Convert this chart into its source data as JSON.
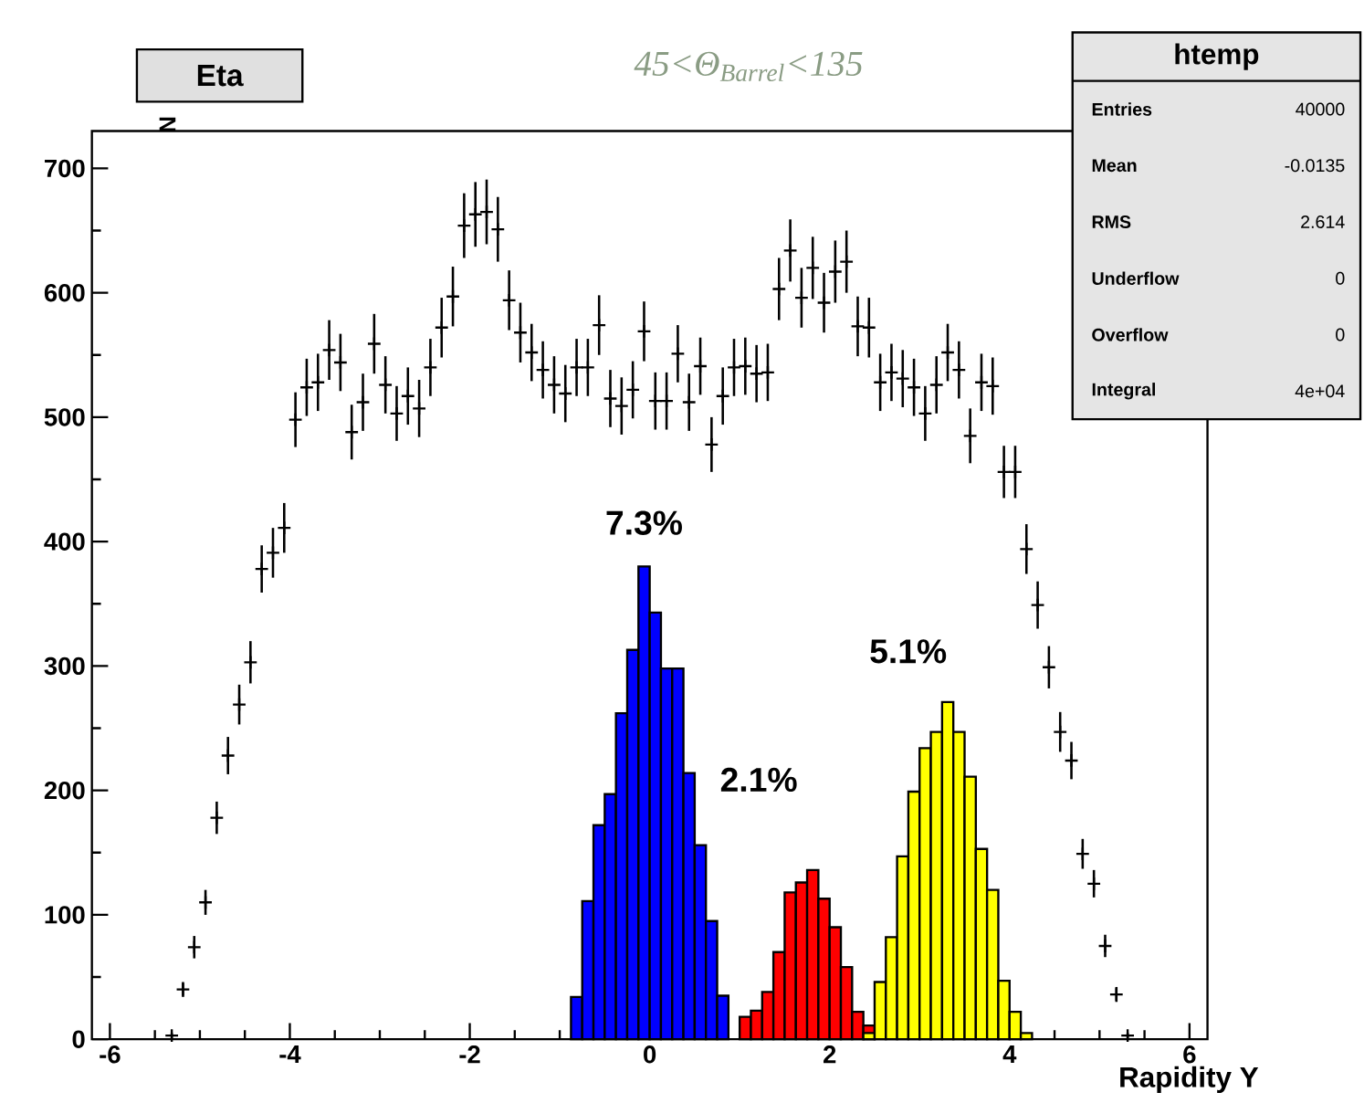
{
  "chart_data": {
    "type": "scatter",
    "title": "Eta",
    "subtitle": "45<Θ$_{Barrel}$<135",
    "xlabel": "Rapidity Y",
    "ylabel": "N",
    "xlim": [
      -6.2,
      6.2
    ],
    "ylim": [
      0,
      730
    ],
    "xticks": [
      -6,
      -4,
      -2,
      0,
      2,
      4,
      6
    ],
    "yticks": [
      0,
      100,
      200,
      300,
      400,
      500,
      600,
      700
    ],
    "marker": "cross",
    "series": [
      {
        "type": "histogram",
        "color": "#0000ff",
        "bins": [
          -0.875,
          -0.75,
          -0.625,
          -0.5,
          -0.375,
          -0.25,
          -0.125,
          0,
          0.125,
          0.25,
          0.375,
          0.5,
          0.625,
          0.75,
          0.875
        ],
        "values": [
          34,
          111,
          172,
          197,
          262,
          313,
          380,
          343,
          298,
          298,
          214,
          156,
          95,
          35
        ]
      },
      {
        "type": "histogram",
        "color": "#ff0000",
        "bins": [
          1,
          1.125,
          1.25,
          1.375,
          1.5,
          1.625,
          1.75,
          1.875,
          2,
          2.125,
          2.25,
          2.375,
          2.5
        ],
        "values": [
          18,
          23,
          38,
          70,
          118,
          126,
          136,
          113,
          90,
          58,
          22,
          11
        ]
      },
      {
        "type": "histogram",
        "color": "#ffff00",
        "bins": [
          2.375,
          2.5,
          2.625,
          2.75,
          2.875,
          3,
          3.125,
          3.25,
          3.375,
          3.5,
          3.625,
          3.75,
          3.875,
          4,
          4.125,
          4.25
        ],
        "values": [
          5,
          46,
          82,
          147,
          199,
          234,
          247,
          271,
          247,
          211,
          153,
          120,
          47,
          22,
          5
        ]
      },
      {
        "color": "#000000",
        "x": [
          -5.3125,
          -5.1875,
          -5.0625,
          -4.9375,
          -4.8125,
          -4.6875,
          -4.5625,
          -4.4375,
          -4.3125,
          -4.1875,
          -4.0625,
          -3.9375,
          -3.8125,
          -3.6875,
          -3.5625,
          -3.4375,
          -3.3125,
          -3.1875,
          -3.0625,
          -2.9375,
          -2.8125,
          -2.6875,
          -2.5625,
          -2.4375,
          -2.3125,
          -2.1875,
          -2.0625,
          -1.9375,
          -1.8125,
          -1.6875,
          -1.5625,
          -1.4375,
          -1.3125,
          -1.1875,
          -1.0625,
          -0.9375,
          -0.8125,
          -0.6875,
          -0.5625,
          -0.4375,
          -0.3125,
          -0.1875,
          -0.0625,
          0.0625,
          0.1875,
          0.3125,
          0.4375,
          0.5625,
          0.6875,
          0.8125,
          0.9375,
          1.0625,
          1.1875,
          1.3125,
          1.4375,
          1.5625,
          1.6875,
          1.8125,
          1.9375,
          2.0625,
          2.1875,
          2.3125,
          2.4375,
          2.5625,
          2.6875,
          2.8125,
          2.9375,
          3.0625,
          3.1875,
          3.3125,
          3.4375,
          3.5625,
          3.6875,
          3.8125,
          3.9375,
          4.0625,
          4.1875,
          4.3125,
          4.4375,
          4.5625,
          4.6875,
          4.8125,
          4.9375,
          5.0625,
          5.1875,
          5.3125
        ],
        "values": [
          3,
          40,
          74,
          110,
          178,
          228,
          269,
          303,
          378,
          391,
          411,
          498,
          524,
          528,
          554,
          544,
          488,
          512,
          559,
          526,
          503,
          517,
          507,
          540,
          572,
          597,
          654,
          663,
          665,
          651,
          594,
          568,
          552,
          538,
          526,
          519,
          540,
          540,
          574,
          515,
          509,
          522,
          569,
          513,
          513,
          551,
          512,
          541,
          478,
          517,
          540,
          541,
          535,
          536,
          603,
          634,
          596,
          620,
          592,
          617,
          625,
          573,
          572,
          528,
          536,
          531,
          524,
          503,
          526,
          552,
          538,
          485,
          528,
          525,
          456,
          456,
          394,
          349,
          299,
          247,
          224,
          149,
          125,
          75,
          36,
          3
        ],
        "errors": [
          2,
          6,
          9,
          10,
          13,
          15,
          16,
          17,
          19,
          20,
          20,
          22,
          23,
          23,
          24,
          23,
          22,
          23,
          24,
          23,
          22,
          23,
          23,
          23,
          24,
          24,
          26,
          26,
          26,
          26,
          24,
          24,
          23,
          23,
          23,
          23,
          23,
          23,
          24,
          23,
          23,
          23,
          24,
          23,
          23,
          23,
          23,
          23,
          22,
          23,
          23,
          23,
          23,
          23,
          25,
          25,
          24,
          25,
          24,
          25,
          25,
          24,
          24,
          23,
          23,
          23,
          23,
          22,
          23,
          23,
          23,
          22,
          23,
          23,
          21,
          21,
          20,
          19,
          17,
          16,
          15,
          12,
          11,
          9,
          6,
          2
        ]
      }
    ],
    "annotations": [
      "7.3%",
      "2.1%",
      "5.1%",
      "htemp",
      "Entries",
      "40000",
      "Mean",
      "-0.0135",
      "RMS",
      "2.614",
      "Underflow",
      "0",
      "Overflow",
      "0",
      "Integral",
      "4e+04"
    ]
  }
}
